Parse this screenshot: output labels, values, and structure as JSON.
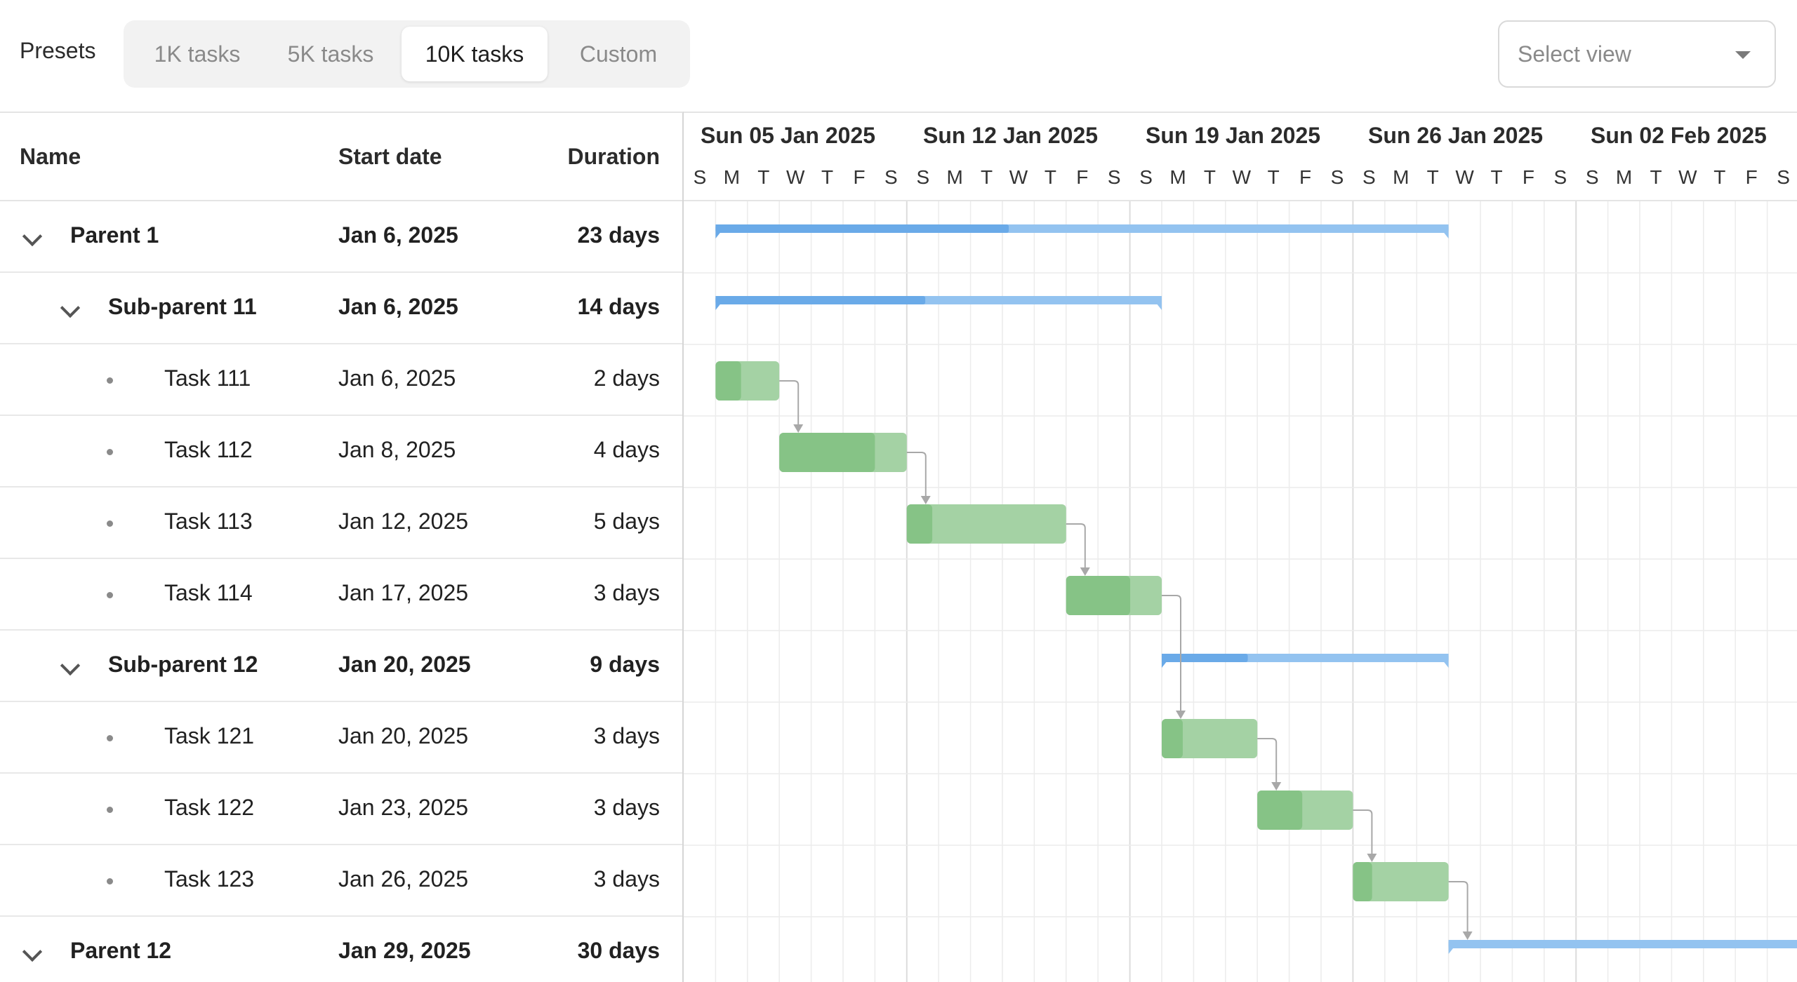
{
  "toolbar": {
    "presets_label": "Presets",
    "presets": [
      {
        "label": "1K tasks",
        "active": false
      },
      {
        "label": "5K tasks",
        "active": false
      },
      {
        "label": "10K tasks",
        "active": true
      },
      {
        "label": "Custom",
        "active": false
      }
    ],
    "select_view": {
      "placeholder": "Select view",
      "icon": "caret-down-icon"
    }
  },
  "grid": {
    "columns": {
      "name": "Name",
      "start": "Start date",
      "duration": "Duration"
    },
    "rows": [
      {
        "name": "Parent 1",
        "start": "Jan 6, 2025",
        "duration": "23 days",
        "level": 0,
        "type": "parent",
        "expanded": true
      },
      {
        "name": "Sub-parent 11",
        "start": "Jan 6, 2025",
        "duration": "14 days",
        "level": 1,
        "type": "parent",
        "expanded": true
      },
      {
        "name": "Task 111",
        "start": "Jan 6, 2025",
        "duration": "2 days",
        "level": 2,
        "type": "task"
      },
      {
        "name": "Task 112",
        "start": "Jan 8, 2025",
        "duration": "4 days",
        "level": 2,
        "type": "task"
      },
      {
        "name": "Task 113",
        "start": "Jan 12, 2025",
        "duration": "5 days",
        "level": 2,
        "type": "task"
      },
      {
        "name": "Task 114",
        "start": "Jan 17, 2025",
        "duration": "3 days",
        "level": 2,
        "type": "task"
      },
      {
        "name": "Sub-parent 12",
        "start": "Jan 20, 2025",
        "duration": "9 days",
        "level": 1,
        "type": "parent",
        "expanded": true
      },
      {
        "name": "Task 121",
        "start": "Jan 20, 2025",
        "duration": "3 days",
        "level": 2,
        "type": "task"
      },
      {
        "name": "Task 122",
        "start": "Jan 23, 2025",
        "duration": "3 days",
        "level": 2,
        "type": "task"
      },
      {
        "name": "Task 123",
        "start": "Jan 26, 2025",
        "duration": "3 days",
        "level": 2,
        "type": "task"
      },
      {
        "name": "Parent 12",
        "start": "Jan 29, 2025",
        "duration": "30 days",
        "level": 0,
        "type": "parent",
        "expanded": true
      }
    ]
  },
  "timeline": {
    "weeks": [
      "Sun 05 Jan 2025",
      "Sun 12 Jan 2025",
      "Sun 19 Jan 2025",
      "Sun 26 Jan 2025",
      "Sun 02 Feb 2025"
    ],
    "day_letters": [
      "S",
      "M",
      "T",
      "W",
      "T",
      "F",
      "S"
    ],
    "bars": [
      {
        "row": 0,
        "start_day": 1,
        "days": 23,
        "progress": 0.4,
        "kind": "summary"
      },
      {
        "row": 1,
        "start_day": 1,
        "days": 14,
        "progress": 0.47,
        "kind": "summary"
      },
      {
        "row": 2,
        "start_day": 1,
        "days": 2,
        "progress": 0.4,
        "kind": "task"
      },
      {
        "row": 3,
        "start_day": 3,
        "days": 4,
        "progress": 0.75,
        "kind": "task"
      },
      {
        "row": 4,
        "start_day": 7,
        "days": 5,
        "progress": 0.16,
        "kind": "task"
      },
      {
        "row": 5,
        "start_day": 12,
        "days": 3,
        "progress": 0.67,
        "kind": "task"
      },
      {
        "row": 6,
        "start_day": 15,
        "days": 9,
        "progress": 0.3,
        "kind": "summary"
      },
      {
        "row": 7,
        "start_day": 15,
        "days": 3,
        "progress": 0.22,
        "kind": "task"
      },
      {
        "row": 8,
        "start_day": 18,
        "days": 3,
        "progress": 0.47,
        "kind": "task"
      },
      {
        "row": 9,
        "start_day": 21,
        "days": 3,
        "progress": 0.2,
        "kind": "task"
      },
      {
        "row": 10,
        "start_day": 24,
        "days": 30,
        "progress": 0.0,
        "kind": "summary"
      }
    ],
    "dependencies": [
      [
        2,
        3
      ],
      [
        3,
        4
      ],
      [
        4,
        5
      ],
      [
        5,
        7
      ],
      [
        7,
        8
      ],
      [
        8,
        9
      ],
      [
        9,
        10
      ]
    ],
    "colors": {
      "summary_progress": "#6aaae8",
      "summary_rest": "#93c3f0",
      "task_progress": "#86c386",
      "task_rest": "#a4d2a4",
      "arrow": "#a8a8a8",
      "grid_line": "#ececec",
      "week_line": "#dcdcdc"
    }
  }
}
